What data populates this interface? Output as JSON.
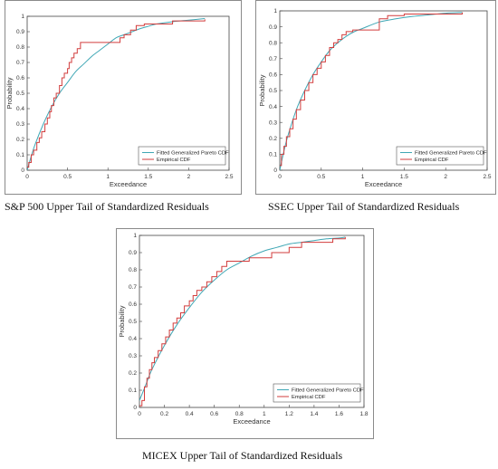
{
  "charts": [
    {
      "caption": "S&P 500 Upper Tail of Standardized Residuals",
      "chart_data": {
        "type": "line",
        "xlabel": "Exceedance",
        "ylabel": "Probability",
        "xlim": [
          0,
          2.5
        ],
        "ylim": [
          0,
          1
        ],
        "xticks": [
          "0",
          "0.5",
          "1",
          "1.5",
          "2",
          "2.5"
        ],
        "yticks": [
          "0",
          "0.1",
          "0.2",
          "0.3",
          "0.4",
          "0.5",
          "0.6",
          "0.7",
          "0.8",
          "0.9",
          "1"
        ],
        "grid": false,
        "legend_position": "bottom-right",
        "series": [
          {
            "name": "Fitted Generalized Pareto CDF",
            "color": "#3fa7b5",
            "style": "smooth",
            "x": [
              0,
              0.05,
              0.1,
              0.2,
              0.3,
              0.4,
              0.5,
              0.6,
              0.7,
              0.8,
              0.9,
              1.0,
              1.1,
              1.2,
              1.3,
              1.4,
              1.5,
              1.6,
              1.8,
              2.0,
              2.2
            ],
            "y": [
              0,
              0.09,
              0.17,
              0.3,
              0.41,
              0.5,
              0.57,
              0.64,
              0.69,
              0.74,
              0.78,
              0.82,
              0.86,
              0.88,
              0.9,
              0.92,
              0.935,
              0.95,
              0.965,
              0.975,
              0.985
            ]
          },
          {
            "name": "Empirical CDF",
            "color": "#d23c3c",
            "style": "step",
            "x": [
              0,
              0.02,
              0.05,
              0.08,
              0.12,
              0.15,
              0.18,
              0.22,
              0.25,
              0.28,
              0.3,
              0.33,
              0.36,
              0.4,
              0.43,
              0.46,
              0.5,
              0.52,
              0.55,
              0.58,
              0.62,
              0.66,
              1.15,
              1.2,
              1.28,
              1.35,
              1.45,
              1.8,
              2.2
            ],
            "y": [
              0.02,
              0.05,
              0.1,
              0.13,
              0.18,
              0.21,
              0.25,
              0.3,
              0.34,
              0.38,
              0.42,
              0.47,
              0.5,
              0.55,
              0.6,
              0.63,
              0.66,
              0.7,
              0.73,
              0.76,
              0.79,
              0.83,
              0.86,
              0.88,
              0.91,
              0.94,
              0.95,
              0.97,
              0.98
            ]
          }
        ]
      }
    },
    {
      "caption": "SSEC Upper Tail of Standardized Residuals",
      "chart_data": {
        "type": "line",
        "xlabel": "Exceedance",
        "ylabel": "Probability",
        "xlim": [
          0,
          2.5
        ],
        "ylim": [
          0,
          1
        ],
        "xticks": [
          "0",
          "0.5",
          "1",
          "1.5",
          "2",
          "2.5"
        ],
        "yticks": [
          "0",
          "0.1",
          "0.2",
          "0.3",
          "0.4",
          "0.5",
          "0.6",
          "0.7",
          "0.8",
          "0.9",
          "1"
        ],
        "grid": false,
        "legend_position": "bottom-right",
        "series": [
          {
            "name": "Fitted Generalized Pareto CDF",
            "color": "#3fa7b5",
            "style": "smooth",
            "x": [
              0,
              0.05,
              0.1,
              0.2,
              0.3,
              0.4,
              0.5,
              0.6,
              0.7,
              0.8,
              0.9,
              1.0,
              1.2,
              1.4,
              1.6,
              1.8,
              2.0,
              2.2
            ],
            "y": [
              0,
              0.12,
              0.22,
              0.38,
              0.5,
              0.6,
              0.68,
              0.75,
              0.8,
              0.84,
              0.87,
              0.89,
              0.93,
              0.95,
              0.965,
              0.975,
              0.985,
              0.99
            ]
          },
          {
            "name": "Empirical CDF",
            "color": "#d23c3c",
            "style": "step",
            "x": [
              0,
              0.02,
              0.05,
              0.08,
              0.12,
              0.16,
              0.2,
              0.25,
              0.3,
              0.35,
              0.4,
              0.45,
              0.5,
              0.55,
              0.6,
              0.65,
              0.7,
              0.75,
              0.8,
              0.88,
              1.2,
              1.3,
              1.5,
              2.2
            ],
            "y": [
              0.03,
              0.1,
              0.15,
              0.21,
              0.26,
              0.32,
              0.38,
              0.44,
              0.5,
              0.55,
              0.6,
              0.64,
              0.68,
              0.72,
              0.77,
              0.8,
              0.82,
              0.85,
              0.87,
              0.88,
              0.95,
              0.97,
              0.98,
              0.99
            ]
          }
        ]
      }
    },
    {
      "caption": "MICEX Upper Tail of Standardized Residuals",
      "chart_data": {
        "type": "line",
        "xlabel": "Exceedance",
        "ylabel": "Probability",
        "xlim": [
          0,
          1.8
        ],
        "ylim": [
          0,
          1
        ],
        "xticks": [
          "0",
          "0.2",
          "0.4",
          "0.6",
          "0.8",
          "1",
          "1.2",
          "1.4",
          "1.6",
          "1.8"
        ],
        "yticks": [
          "0",
          "0.1",
          "0.2",
          "0.3",
          "0.4",
          "0.5",
          "0.6",
          "0.7",
          "0.8",
          "0.9",
          "1"
        ],
        "grid": false,
        "legend_position": "bottom-right",
        "series": [
          {
            "name": "Fitted Generalized Pareto CDF",
            "color": "#3fa7b5",
            "style": "smooth",
            "x": [
              0,
              0.05,
              0.1,
              0.2,
              0.3,
              0.4,
              0.5,
              0.6,
              0.7,
              0.8,
              0.9,
              1.0,
              1.1,
              1.2,
              1.3,
              1.4,
              1.5,
              1.6,
              1.65
            ],
            "y": [
              0.04,
              0.13,
              0.22,
              0.36,
              0.48,
              0.58,
              0.67,
              0.74,
              0.8,
              0.84,
              0.88,
              0.91,
              0.93,
              0.95,
              0.96,
              0.97,
              0.98,
              0.985,
              0.99
            ]
          },
          {
            "name": "Empirical CDF",
            "color": "#d23c3c",
            "style": "step",
            "x": [
              0,
              0.02,
              0.04,
              0.06,
              0.08,
              0.1,
              0.12,
              0.15,
              0.18,
              0.21,
              0.24,
              0.27,
              0.3,
              0.33,
              0.36,
              0.4,
              0.43,
              0.46,
              0.5,
              0.54,
              0.58,
              0.62,
              0.66,
              0.7,
              0.88,
              1.06,
              1.2,
              1.3,
              1.55,
              1.65
            ],
            "y": [
              0.01,
              0.04,
              0.12,
              0.17,
              0.22,
              0.26,
              0.29,
              0.33,
              0.37,
              0.41,
              0.45,
              0.49,
              0.52,
              0.55,
              0.59,
              0.62,
              0.65,
              0.68,
              0.7,
              0.73,
              0.76,
              0.79,
              0.82,
              0.85,
              0.87,
              0.9,
              0.93,
              0.96,
              0.98,
              0.99
            ]
          }
        ]
      }
    }
  ]
}
